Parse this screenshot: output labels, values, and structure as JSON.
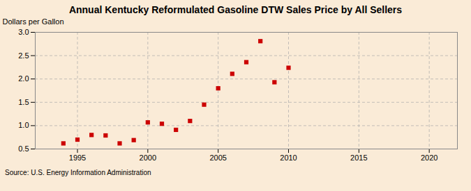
{
  "chart_data": {
    "type": "scatter",
    "title": "Annual Kentucky Reformulated Gasoline DTW Sales Price by All Sellers",
    "ylabel": "Dollars per Gallon",
    "annotation": "Source: U.S. Energy Information Administration",
    "x": [
      1994,
      1995,
      1996,
      1997,
      1998,
      1999,
      2000,
      2001,
      2002,
      2003,
      2004,
      2005,
      2006,
      2007,
      2008,
      2009,
      2010
    ],
    "values": [
      0.62,
      0.7,
      0.8,
      0.79,
      0.62,
      0.69,
      1.07,
      1.04,
      0.91,
      1.1,
      1.45,
      1.8,
      2.11,
      2.36,
      2.81,
      1.93,
      2.24
    ],
    "color": "#cc0000",
    "marker": "square",
    "xlim": [
      1992,
      2022
    ],
    "xticks": [
      1995,
      2000,
      2005,
      2010,
      2015,
      2020
    ],
    "ylim": [
      0.5,
      3.0
    ],
    "yticks": [
      0.5,
      {
        "value": 1.0,
        "label": "1.0"
      },
      1.5,
      {
        "value": 2.0,
        "label": "2.0"
      },
      2.5,
      {
        "value": 3.0,
        "label": "3.0"
      }
    ],
    "grid": true
  }
}
